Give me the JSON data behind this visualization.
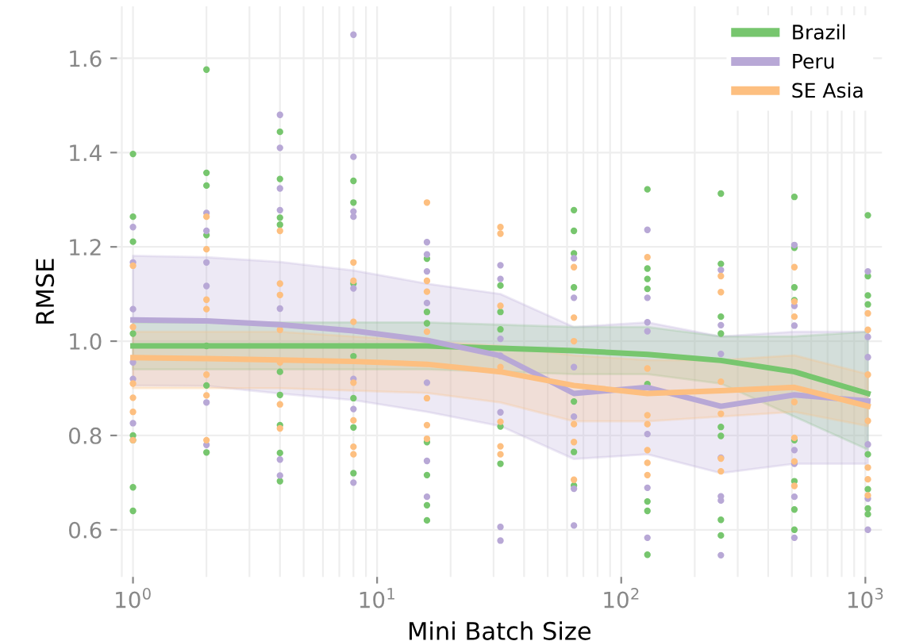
{
  "chart_data": {
    "type": "line",
    "xlabel": "Mini Batch Size",
    "ylabel": "RMSE",
    "log": "x",
    "grid": true,
    "legend": "top right",
    "xlim": [
      0.86,
      1170
    ],
    "xticks": [
      {
        "value": 1,
        "label": "10$^{0}$"
      },
      {
        "value": 10,
        "label": "10$^{1}$"
      },
      {
        "value": 100,
        "label": "10$^{2}$"
      },
      {
        "value": 1000,
        "label": "10$^{3}$"
      }
    ],
    "ylim": [
      0.5,
      1.71
    ],
    "yticks": [
      0.6,
      0.8,
      {
        "value": 1,
        "label": "1.0"
      },
      1.2,
      1.4,
      1.6
    ],
    "series": [
      {
        "type": "scatter",
        "marker": "circle",
        "color": "#77c66e",
        "x": [
          1,
          1,
          1,
          1,
          1,
          1,
          1,
          1,
          2,
          2,
          2,
          2,
          2,
          2,
          2,
          4,
          4,
          4,
          4,
          4,
          4,
          4,
          4,
          4,
          8,
          8,
          8,
          8,
          8,
          8,
          8,
          16,
          16,
          16,
          16,
          16,
          16,
          16,
          32,
          32,
          32,
          32,
          32,
          64,
          64,
          64,
          64,
          64,
          64,
          64,
          128,
          128,
          128,
          128,
          128,
          128,
          128,
          128,
          256,
          256,
          256,
          256,
          256,
          256,
          256,
          256,
          512,
          512,
          512,
          512,
          512,
          512,
          512,
          512,
          1024,
          1024,
          1024,
          1024,
          1024,
          1024,
          1024,
          1024
        ],
        "values": [
          1.397,
          1.264,
          1.211,
          1.016,
          0.8,
          0.79,
          0.69,
          0.64,
          1.576,
          1.357,
          1.33,
          1.225,
          0.99,
          0.906,
          0.764,
          1.444,
          1.344,
          1.262,
          1.247,
          0.935,
          0.886,
          0.822,
          0.763,
          0.703,
          1.34,
          1.294,
          1.122,
          0.968,
          0.879,
          0.817,
          0.72,
          1.175,
          1.062,
          1.038,
          0.786,
          0.716,
          0.652,
          0.62,
          1.118,
          1.062,
          1.025,
          0.819,
          0.74,
          1.278,
          1.234,
          1.186,
          1.114,
          0.872,
          0.765,
          0.694,
          1.322,
          1.154,
          1.132,
          1.111,
          0.909,
          0.66,
          0.64,
          0.547,
          1.313,
          1.164,
          1.052,
          1.016,
          0.818,
          0.799,
          0.621,
          0.588,
          1.306,
          1.198,
          1.114,
          1.087,
          0.79,
          0.703,
          0.643,
          0.6,
          1.267,
          1.138,
          1.097,
          1.078,
          0.76,
          0.686,
          0.645,
          0.633
        ]
      },
      {
        "type": "scatter",
        "marker": "circle",
        "color": "#b8a8d6",
        "x": [
          1,
          1,
          1,
          1,
          1,
          1,
          2,
          2,
          2,
          2,
          2,
          2,
          4,
          4,
          4,
          4,
          4,
          4,
          4,
          8,
          8,
          8,
          8,
          8,
          8,
          8,
          8,
          16,
          16,
          16,
          16,
          16,
          16,
          16,
          32,
          32,
          32,
          32,
          32,
          32,
          32,
          64,
          64,
          64,
          64,
          64,
          64,
          128,
          128,
          128,
          128,
          128,
          128,
          128,
          256,
          256,
          256,
          256,
          256,
          256,
          256,
          512,
          512,
          512,
          512,
          512,
          512,
          512,
          1024,
          1024,
          1024,
          1024,
          1024,
          1024
        ],
        "values": [
          1.242,
          1.167,
          1.068,
          0.955,
          0.92,
          0.826,
          1.272,
          1.234,
          1.167,
          1.117,
          0.87,
          0.78,
          1.48,
          1.41,
          1.324,
          1.278,
          1.069,
          0.749,
          0.715,
          1.65,
          1.391,
          1.275,
          1.264,
          1.112,
          0.92,
          0.856,
          0.7,
          1.21,
          1.184,
          1.148,
          1.081,
          0.912,
          0.746,
          0.67,
          1.161,
          1.132,
          1.005,
          0.969,
          0.849,
          0.606,
          0.577,
          1.176,
          1.092,
          0.945,
          0.84,
          0.687,
          0.609,
          1.236,
          1.092,
          1.04,
          1.021,
          0.803,
          0.689,
          0.583,
          1.151,
          1.034,
          0.973,
          0.753,
          0.671,
          0.662,
          0.546,
          1.204,
          1.075,
          1.033,
          0.769,
          0.74,
          0.67,
          0.583,
          1.148,
          1.009,
          0.966,
          0.781,
          0.666,
          0.6
        ]
      },
      {
        "type": "scatter",
        "marker": "circle",
        "color": "#fdbf80",
        "x": [
          1,
          1,
          1,
          1,
          1,
          1,
          2,
          2,
          2,
          2,
          2,
          2,
          2,
          4,
          4,
          4,
          4,
          4,
          4,
          4,
          8,
          8,
          8,
          8,
          8,
          8,
          8,
          16,
          16,
          16,
          16,
          16,
          16,
          16,
          32,
          32,
          32,
          32,
          32,
          32,
          32,
          64,
          64,
          64,
          64,
          64,
          64,
          128,
          128,
          128,
          128,
          128,
          128,
          128,
          256,
          256,
          256,
          256,
          256,
          256,
          512,
          512,
          512,
          512,
          512,
          512,
          512,
          1024,
          1024,
          1024,
          1024,
          1024,
          1024,
          1024
        ],
        "values": [
          1.16,
          1.03,
          0.91,
          0.88,
          0.85,
          0.79,
          1.264,
          1.195,
          1.088,
          1.068,
          0.929,
          0.885,
          0.79,
          1.234,
          1.122,
          1.098,
          1.024,
          0.955,
          0.866,
          0.815,
          1.167,
          1.128,
          1.041,
          0.912,
          0.832,
          0.776,
          0.76,
          1.294,
          1.128,
          1.105,
          1.02,
          0.879,
          0.822,
          0.793,
          1.242,
          1.228,
          1.075,
          0.945,
          0.829,
          0.777,
          0.76,
          1.157,
          1.05,
          1.0,
          0.824,
          0.786,
          0.706,
          1.178,
          0.942,
          0.843,
          0.824,
          0.769,
          0.742,
          0.716,
          1.138,
          1.104,
          0.914,
          0.846,
          0.751,
          0.724,
          1.157,
          1.084,
          1.052,
          0.871,
          0.795,
          0.745,
          0.693,
          1.059,
          1.024,
          0.929,
          0.831,
          0.732,
          0.707,
          0.673
        ]
      },
      {
        "name": "Brazil",
        "marker": "none",
        "color": "#77c66e",
        "x": [
          1,
          2,
          4,
          8,
          16,
          32,
          64,
          128,
          256,
          512,
          1024
        ],
        "values": [
          0.99,
          0.99,
          0.99,
          0.99,
          0.99,
          0.985,
          0.98,
          0.972,
          0.959,
          0.935,
          0.889
        ],
        "lower": [
          0.94,
          0.94,
          0.94,
          0.94,
          0.94,
          0.935,
          0.93,
          0.93,
          0.91,
          0.84,
          0.77
        ],
        "upper": [
          1.04,
          1.04,
          1.04,
          1.04,
          1.04,
          1.035,
          1.03,
          1.03,
          1.01,
          1.01,
          1.02
        ]
      },
      {
        "name": "Peru",
        "marker": "none",
        "color": "#b8a8d6",
        "x": [
          1,
          2,
          4,
          8,
          16,
          32,
          64,
          128,
          256,
          512,
          1024
        ],
        "values": [
          1.045,
          1.043,
          1.035,
          1.022,
          1.002,
          0.969,
          0.889,
          0.902,
          0.862,
          0.886,
          0.873
        ],
        "lower": [
          0.906,
          0.905,
          0.889,
          0.875,
          0.85,
          0.82,
          0.75,
          0.76,
          0.72,
          0.74,
          0.74
        ],
        "upper": [
          1.181,
          1.178,
          1.168,
          1.15,
          1.122,
          1.1,
          1.03,
          1.04,
          1.01,
          1.02,
          1.02
        ]
      },
      {
        "name": "SE Asia",
        "marker": "none",
        "color": "#fdbf80",
        "x": [
          1,
          2,
          4,
          8,
          16,
          32,
          64,
          128,
          256,
          512,
          1024
        ],
        "values": [
          0.965,
          0.963,
          0.96,
          0.957,
          0.951,
          0.935,
          0.906,
          0.889,
          0.895,
          0.902,
          0.862
        ],
        "lower": [
          0.9,
          0.9,
          0.9,
          0.895,
          0.89,
          0.87,
          0.83,
          0.83,
          0.84,
          0.85,
          0.82
        ],
        "upper": [
          1.02,
          1.02,
          1.02,
          1.01,
          1.0,
          0.99,
          0.97,
          0.96,
          0.96,
          0.97,
          0.93
        ]
      }
    ]
  }
}
